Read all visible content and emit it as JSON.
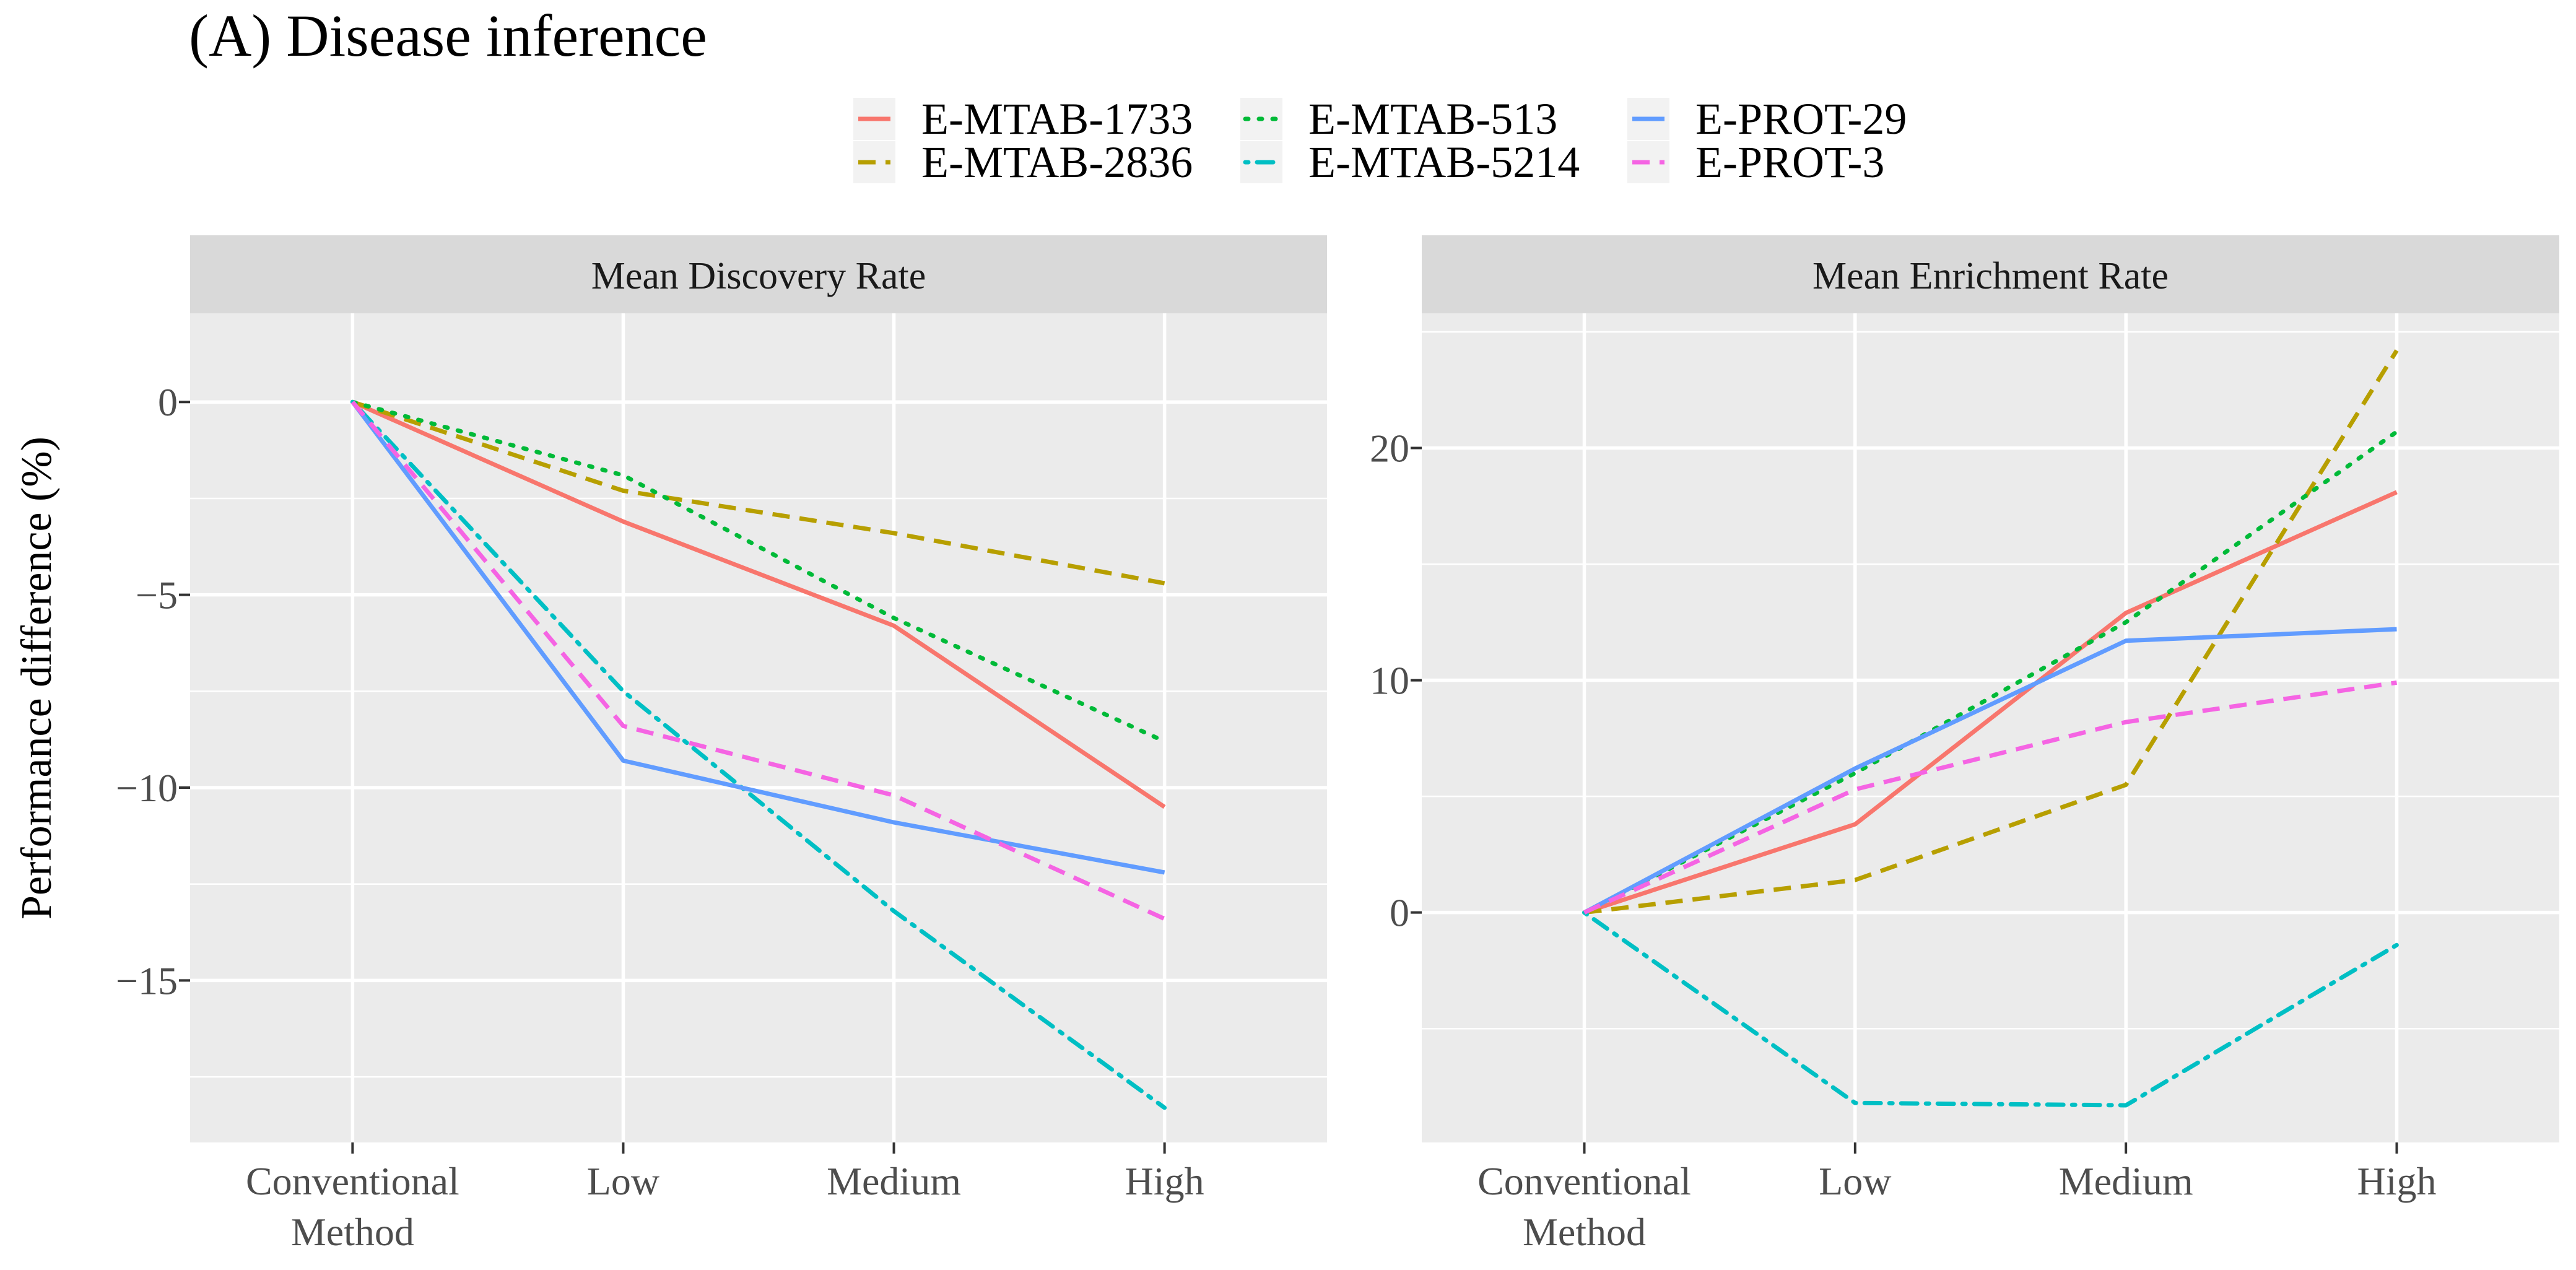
{
  "title": "(A) Disease inference",
  "ylabel": "Performance difference (%)",
  "colors": {
    "E-MTAB-1733": "#F8766D",
    "E-MTAB-2836": "#B79F00",
    "E-MTAB-513": "#00BA38",
    "E-MTAB-5214": "#00BFC4",
    "E-PROT-29": "#619CFF",
    "E-PROT-3": "#F564E3"
  },
  "legend": [
    {
      "name": "E-MTAB-1733",
      "dash": "solid"
    },
    {
      "name": "E-MTAB-2836",
      "dash": "dashed"
    },
    {
      "name": "E-MTAB-513",
      "dash": "dotted"
    },
    {
      "name": "E-MTAB-5214",
      "dash": "dotdash"
    },
    {
      "name": "E-PROT-29",
      "dash": "solid"
    },
    {
      "name": "E-PROT-3",
      "dash": "dashed"
    }
  ],
  "chart_data": [
    {
      "type": "line",
      "facet": "Mean Discovery Rate",
      "categories": [
        "Conventional Method",
        "Low",
        "Medium",
        "High"
      ],
      "category_lines": [
        [
          "Conventional",
          "Method"
        ],
        [
          "Low"
        ],
        [
          "Medium"
        ],
        [
          "High"
        ]
      ],
      "yticks": [
        0,
        -5,
        -10,
        -15
      ],
      "ytick_labels": [
        "0",
        "−5",
        "−10",
        "−15"
      ],
      "ylim": [
        -19.2,
        2.3
      ],
      "series": [
        {
          "name": "E-MTAB-1733",
          "values": [
            0,
            -3.1,
            -5.8,
            -10.5
          ]
        },
        {
          "name": "E-MTAB-2836",
          "values": [
            0,
            -2.3,
            -3.4,
            -4.7
          ]
        },
        {
          "name": "E-MTAB-513",
          "values": [
            0,
            -1.9,
            -5.6,
            -8.8
          ]
        },
        {
          "name": "E-MTAB-5214",
          "values": [
            0,
            -7.5,
            -13.2,
            -18.3
          ]
        },
        {
          "name": "E-PROT-29",
          "values": [
            0,
            -9.3,
            -10.9,
            -12.2
          ]
        },
        {
          "name": "E-PROT-3",
          "values": [
            0,
            -8.4,
            -10.2,
            -13.4
          ]
        }
      ]
    },
    {
      "type": "line",
      "facet": "Mean Enrichment Rate",
      "categories": [
        "Conventional Method",
        "Low",
        "Medium",
        "High"
      ],
      "category_lines": [
        [
          "Conventional",
          "Method"
        ],
        [
          "Low"
        ],
        [
          "Medium"
        ],
        [
          "High"
        ]
      ],
      "yticks": [
        0,
        10,
        20
      ],
      "ytick_labels": [
        "0",
        "10",
        "20"
      ],
      "ylim": [
        -9.9,
        25.8
      ],
      "series": [
        {
          "name": "E-MTAB-1733",
          "values": [
            0,
            3.8,
            12.9,
            18.1
          ]
        },
        {
          "name": "E-MTAB-2836",
          "values": [
            0,
            1.4,
            5.5,
            24.2
          ]
        },
        {
          "name": "E-MTAB-513",
          "values": [
            0,
            6.0,
            12.5,
            20.7
          ]
        },
        {
          "name": "E-MTAB-5214",
          "values": [
            0,
            -8.2,
            -8.3,
            -1.4
          ]
        },
        {
          "name": "E-PROT-29",
          "values": [
            0,
            6.2,
            11.7,
            12.2
          ]
        },
        {
          "name": "E-PROT-3",
          "values": [
            0,
            5.3,
            8.2,
            9.9
          ]
        }
      ]
    }
  ]
}
